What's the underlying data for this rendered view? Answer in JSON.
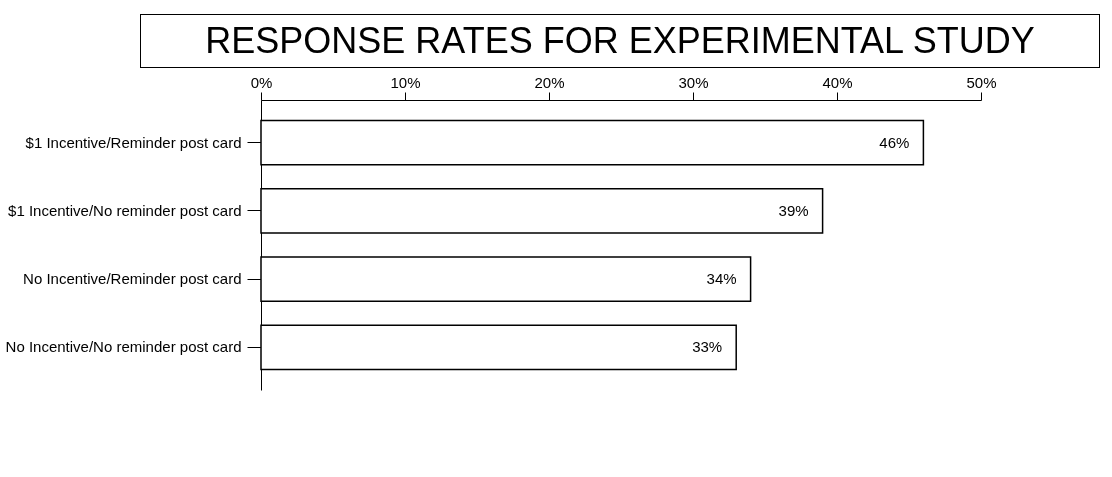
{
  "chart_data": {
    "type": "bar",
    "orientation": "horizontal",
    "title": "RESPONSE RATES FOR EXPERIMENTAL STUDY",
    "categories": [
      "$1 Incentive/Reminder post card",
      "$1 Incentive/No reminder post card",
      "No Incentive/Reminder post card",
      "No Incentive/No reminder post card"
    ],
    "values": [
      46,
      39,
      34,
      33
    ],
    "value_labels": [
      "46%",
      "39%",
      "34%",
      "33%"
    ],
    "color": "#ffffff",
    "xlim": [
      0,
      50
    ],
    "xticks": [
      {
        "value": 0,
        "label": "0%"
      },
      {
        "value": 10,
        "label": "10%"
      },
      {
        "value": 20,
        "label": "20%"
      },
      {
        "value": 30,
        "label": "30%"
      },
      {
        "value": 40,
        "label": "40%"
      },
      {
        "value": 50,
        "label": "50%"
      }
    ],
    "grid": false
  }
}
